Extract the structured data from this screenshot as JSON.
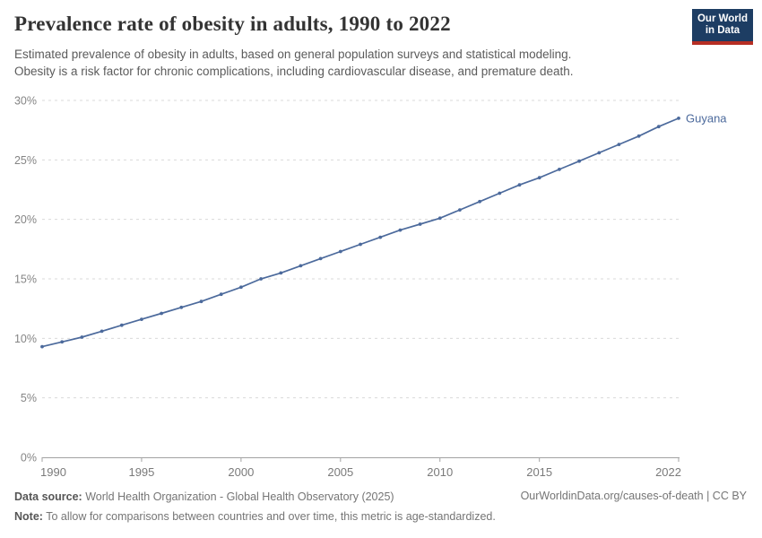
{
  "header": {
    "title": "Prevalence rate of obesity in adults, 1990 to 2022",
    "subtitle_line1": "Estimated prevalence of obesity in adults, based on general population surveys and statistical modeling.",
    "subtitle_line2": "Obesity is a risk factor for chronic complications, including cardiovascular disease, and premature death.",
    "logo_line1": "Our World",
    "logo_line2": "in Data"
  },
  "chart_data": {
    "type": "line",
    "title": "Prevalence rate of obesity in adults, 1990 to 2022",
    "x": [
      1990,
      1991,
      1992,
      1993,
      1994,
      1995,
      1996,
      1997,
      1998,
      1999,
      2000,
      2001,
      2002,
      2003,
      2004,
      2005,
      2006,
      2007,
      2008,
      2009,
      2010,
      2011,
      2012,
      2013,
      2014,
      2015,
      2016,
      2017,
      2018,
      2019,
      2020,
      2021,
      2022
    ],
    "series": [
      {
        "name": "Guyana",
        "color": "#4c6a9c",
        "values": [
          9.3,
          9.7,
          10.1,
          10.6,
          11.1,
          11.6,
          12.1,
          12.6,
          13.1,
          13.7,
          14.3,
          15.0,
          15.5,
          16.1,
          16.7,
          17.3,
          17.9,
          18.5,
          19.1,
          19.6,
          20.1,
          20.8,
          21.5,
          22.2,
          22.9,
          23.5,
          24.2,
          24.9,
          25.6,
          26.3,
          27.0,
          27.8,
          28.5
        ]
      }
    ],
    "xlabel": "",
    "ylabel": "",
    "xlim": [
      1990,
      2022
    ],
    "ylim": [
      0,
      30
    ],
    "x_ticks": [
      1990,
      1995,
      2000,
      2005,
      2010,
      2015,
      2022
    ],
    "y_ticks": [
      0,
      5,
      10,
      15,
      20,
      25,
      30
    ],
    "y_tick_labels": [
      "0%",
      "5%",
      "10%",
      "15%",
      "20%",
      "25%",
      "30%"
    ],
    "grid": "horizontal-dashed",
    "legend_position": "end-of-line-label"
  },
  "footer": {
    "datasource_label": "Data source:",
    "datasource_text": " World Health Organization - Global Health Observatory (2025)",
    "note_label": "Note:",
    "note_text": " To allow for comparisons between countries and over time, this metric is age-standardized.",
    "link_text": "OurWorldinData.org/causes-of-death | CC BY"
  },
  "colors": {
    "series_blue": "#4c6a9c",
    "logo_navy": "#1d3d63",
    "logo_red": "#b62e24",
    "grid_gray": "#d9d9d9",
    "axis_gray": "#a3a3a3"
  }
}
